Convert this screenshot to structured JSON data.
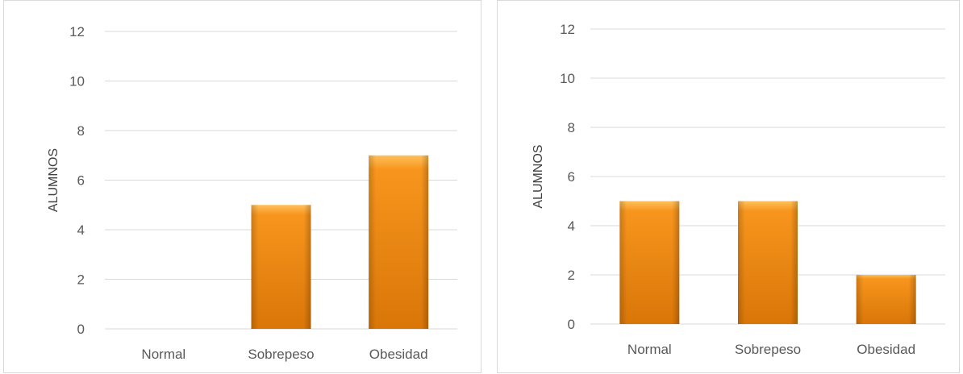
{
  "colors": {
    "bar_top": "#FFC05A",
    "bar_mid": "#F7951D",
    "bar_bottom": "#D97608",
    "gridline": "#D9D9D9",
    "tick_text": "#595959"
  },
  "chart_data": [
    {
      "type": "bar",
      "title": "",
      "xlabel": "",
      "ylabel": "ALUMNOS",
      "categories": [
        "Normal",
        "Sobrepeso",
        "Obesidad"
      ],
      "values": [
        0,
        5,
        7
      ],
      "ylim": [
        0,
        12
      ],
      "yticks": [
        0,
        2,
        4,
        6,
        8,
        10,
        12
      ],
      "grid": true,
      "legend": "none"
    },
    {
      "type": "bar",
      "title": "",
      "xlabel": "",
      "ylabel": "ALUMNOS",
      "categories": [
        "Normal",
        "Sobrepeso",
        "Obesidad"
      ],
      "values": [
        5,
        5,
        2
      ],
      "ylim": [
        0,
        12
      ],
      "yticks": [
        0,
        2,
        4,
        6,
        8,
        10,
        12
      ],
      "grid": true,
      "legend": "none"
    }
  ]
}
